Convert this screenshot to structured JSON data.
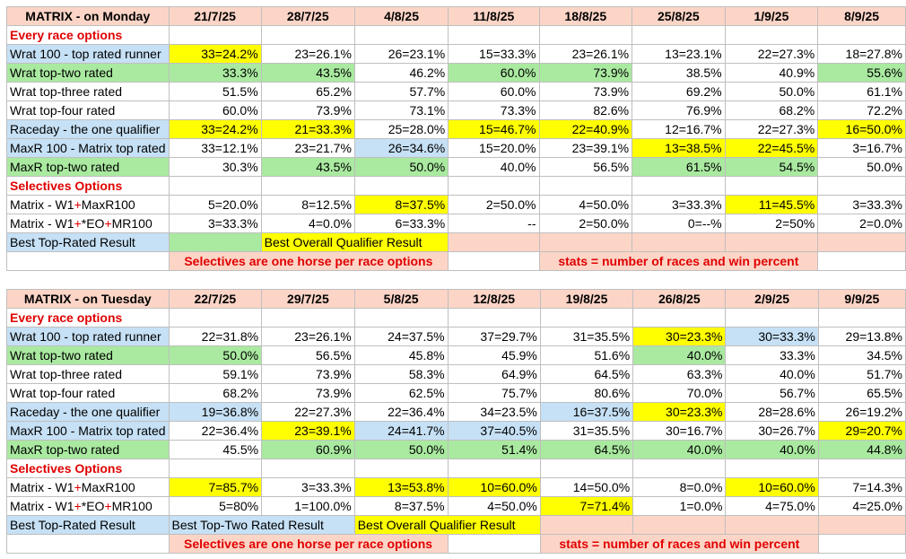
{
  "monday": {
    "title": "MATRIX - on Monday",
    "dates": [
      "21/7/25",
      "28/7/25",
      "4/8/25",
      "11/8/25",
      "18/8/25",
      "25/8/25",
      "1/9/25",
      "8/9/25"
    ],
    "section_every": "Every race options",
    "section_selectives": "Selectives Options",
    "rows": [
      {
        "label": "Wrat 100 - top rated runner",
        "label_color": "blue",
        "cells": [
          {
            "v": "33=24.2%",
            "c": "yellow"
          },
          {
            "v": "23=26.1%",
            "c": ""
          },
          {
            "v": "26=23.1%",
            "c": ""
          },
          {
            "v": "15=33.3%",
            "c": ""
          },
          {
            "v": "23=26.1%",
            "c": ""
          },
          {
            "v": "13=23.1%",
            "c": ""
          },
          {
            "v": "22=27.3%",
            "c": ""
          },
          {
            "v": "18=27.8%",
            "c": ""
          }
        ]
      },
      {
        "label": "Wrat top-two rated",
        "label_color": "green",
        "cells": [
          {
            "v": "33.3%",
            "c": "green"
          },
          {
            "v": "43.5%",
            "c": "green"
          },
          {
            "v": "46.2%",
            "c": ""
          },
          {
            "v": "60.0%",
            "c": "green"
          },
          {
            "v": "73.9%",
            "c": "green"
          },
          {
            "v": "38.5%",
            "c": ""
          },
          {
            "v": "40.9%",
            "c": ""
          },
          {
            "v": "55.6%",
            "c": "green"
          }
        ]
      },
      {
        "label": "Wrat top-three rated",
        "label_color": "",
        "cells": [
          {
            "v": "51.5%",
            "c": ""
          },
          {
            "v": "65.2%",
            "c": ""
          },
          {
            "v": "57.7%",
            "c": ""
          },
          {
            "v": "60.0%",
            "c": ""
          },
          {
            "v": "73.9%",
            "c": ""
          },
          {
            "v": "69.2%",
            "c": ""
          },
          {
            "v": "50.0%",
            "c": ""
          },
          {
            "v": "61.1%",
            "c": ""
          }
        ]
      },
      {
        "label": "Wrat top-four rated",
        "label_color": "",
        "cells": [
          {
            "v": "60.0%",
            "c": ""
          },
          {
            "v": "73.9%",
            "c": ""
          },
          {
            "v": "73.1%",
            "c": ""
          },
          {
            "v": "73.3%",
            "c": ""
          },
          {
            "v": "82.6%",
            "c": ""
          },
          {
            "v": "76.9%",
            "c": ""
          },
          {
            "v": "68.2%",
            "c": ""
          },
          {
            "v": "72.2%",
            "c": ""
          }
        ]
      },
      {
        "label": "Raceday - the one qualifier",
        "label_color": "blue",
        "cells": [
          {
            "v": "33=24.2%",
            "c": "yellow"
          },
          {
            "v": "21=33.3%",
            "c": "yellow"
          },
          {
            "v": "25=28.0%",
            "c": ""
          },
          {
            "v": "15=46.7%",
            "c": "yellow"
          },
          {
            "v": "22=40.9%",
            "c": "yellow"
          },
          {
            "v": "12=16.7%",
            "c": ""
          },
          {
            "v": "22=27.3%",
            "c": ""
          },
          {
            "v": "16=50.0%",
            "c": "yellow"
          }
        ]
      },
      {
        "label": "MaxR 100 - Matrix top rated",
        "label_color": "blue",
        "cells": [
          {
            "v": "33=12.1%",
            "c": ""
          },
          {
            "v": "23=21.7%",
            "c": ""
          },
          {
            "v": "26=34.6%",
            "c": "blue"
          },
          {
            "v": "15=20.0%",
            "c": ""
          },
          {
            "v": "23=39.1%",
            "c": ""
          },
          {
            "v": "13=38.5%",
            "c": "yellow"
          },
          {
            "v": "22=45.5%",
            "c": "yellow"
          },
          {
            "v": "3=16.7%",
            "c": ""
          }
        ]
      },
      {
        "label": "MaxR top-two rated",
        "label_color": "green",
        "cells": [
          {
            "v": "30.3%",
            "c": ""
          },
          {
            "v": "43.5%",
            "c": "green"
          },
          {
            "v": "50.0%",
            "c": "green"
          },
          {
            "v": "40.0%",
            "c": ""
          },
          {
            "v": "56.5%",
            "c": ""
          },
          {
            "v": "61.5%",
            "c": "green"
          },
          {
            "v": "54.5%",
            "c": "green"
          },
          {
            "v": "50.0%",
            "c": ""
          }
        ]
      }
    ],
    "selectives": [
      {
        "label_a": "Matrix - W1",
        "label_b": "+",
        "label_c": "MaxR100",
        "label_d": "",
        "label_e": "",
        "cells": [
          {
            "v": "5=20.0%",
            "c": ""
          },
          {
            "v": "8=12.5%",
            "c": ""
          },
          {
            "v": "8=37.5%",
            "c": "yellow"
          },
          {
            "v": "2=50.0%",
            "c": ""
          },
          {
            "v": "4=50.0%",
            "c": ""
          },
          {
            "v": "3=33.3%",
            "c": ""
          },
          {
            "v": "11=45.5%",
            "c": "yellow"
          },
          {
            "v": "3=33.3%",
            "c": ""
          }
        ]
      },
      {
        "label_a": "Matrix - W1",
        "label_b": "+",
        "label_c": "*EO",
        "label_d": "+",
        "label_e": "MR100",
        "cells": [
          {
            "v": "3=33.3%",
            "c": ""
          },
          {
            "v": "4=0.0%",
            "c": ""
          },
          {
            "v": "6=33.3%",
            "c": ""
          },
          {
            "v": "--",
            "c": ""
          },
          {
            "v": "2=50.0%",
            "c": ""
          },
          {
            "v": "0=--%",
            "c": ""
          },
          {
            "v": "2=50%",
            "c": ""
          },
          {
            "v": "2=0.0%",
            "c": ""
          }
        ]
      }
    ],
    "legend_top": "Best Top-Rated Result",
    "legend_overall": "Best Overall Qualifier Result",
    "note_left": "Selectives are one horse per race options",
    "note_right": "stats = number of races and win percent"
  },
  "tuesday": {
    "title": "MATRIX - on Tuesday",
    "dates": [
      "22/7/25",
      "29/7/25",
      "5/8/25",
      "12/8/25",
      "19/8/25",
      "26/8/25",
      "2/9/25",
      "9/9/25"
    ],
    "section_every": "Every race options",
    "section_selectives": "Selectives Options",
    "rows": [
      {
        "label": "Wrat 100 - top rated runner",
        "label_color": "blue",
        "cells": [
          {
            "v": "22=31.8%",
            "c": ""
          },
          {
            "v": "23=26.1%",
            "c": ""
          },
          {
            "v": "24=37.5%",
            "c": ""
          },
          {
            "v": "37=29.7%",
            "c": ""
          },
          {
            "v": "31=35.5%",
            "c": ""
          },
          {
            "v": "30=23.3%",
            "c": "yellow"
          },
          {
            "v": "30=33.3%",
            "c": "blue"
          },
          {
            "v": "29=13.8%",
            "c": ""
          }
        ]
      },
      {
        "label": "Wrat top-two rated",
        "label_color": "green",
        "cells": [
          {
            "v": "50.0%",
            "c": "green"
          },
          {
            "v": "56.5%",
            "c": ""
          },
          {
            "v": "45.8%",
            "c": ""
          },
          {
            "v": "45.9%",
            "c": ""
          },
          {
            "v": "51.6%",
            "c": ""
          },
          {
            "v": "40.0%",
            "c": "green"
          },
          {
            "v": "33.3%",
            "c": ""
          },
          {
            "v": "34.5%",
            "c": ""
          }
        ]
      },
      {
        "label": "Wrat top-three rated",
        "label_color": "",
        "cells": [
          {
            "v": "59.1%",
            "c": ""
          },
          {
            "v": "73.9%",
            "c": ""
          },
          {
            "v": "58.3%",
            "c": ""
          },
          {
            "v": "64.9%",
            "c": ""
          },
          {
            "v": "64.5%",
            "c": ""
          },
          {
            "v": "63.3%",
            "c": ""
          },
          {
            "v": "40.0%",
            "c": ""
          },
          {
            "v": "51.7%",
            "c": ""
          }
        ]
      },
      {
        "label": "Wrat top-four rated",
        "label_color": "",
        "cells": [
          {
            "v": "68.2%",
            "c": ""
          },
          {
            "v": "73.9%",
            "c": ""
          },
          {
            "v": "62.5%",
            "c": ""
          },
          {
            "v": "75.7%",
            "c": ""
          },
          {
            "v": "80.6%",
            "c": ""
          },
          {
            "v": "70.0%",
            "c": ""
          },
          {
            "v": "56.7%",
            "c": ""
          },
          {
            "v": "65.5%",
            "c": ""
          }
        ]
      },
      {
        "label": "Raceday - the one qualifier",
        "label_color": "blue",
        "cells": [
          {
            "v": "19=36.8%",
            "c": "blue"
          },
          {
            "v": "22=27.3%",
            "c": ""
          },
          {
            "v": "22=36.4%",
            "c": ""
          },
          {
            "v": "34=23.5%",
            "c": ""
          },
          {
            "v": "16=37.5%",
            "c": "blue"
          },
          {
            "v": "30=23.3%",
            "c": "yellow"
          },
          {
            "v": "28=28.6%",
            "c": ""
          },
          {
            "v": "26=19.2%",
            "c": ""
          }
        ]
      },
      {
        "label": "MaxR 100 - Matrix top rated",
        "label_color": "blue",
        "cells": [
          {
            "v": "22=36.4%",
            "c": ""
          },
          {
            "v": "23=39.1%",
            "c": "yellow"
          },
          {
            "v": "24=41.7%",
            "c": "blue"
          },
          {
            "v": "37=40.5%",
            "c": "blue"
          },
          {
            "v": "31=35.5%",
            "c": ""
          },
          {
            "v": "30=16.7%",
            "c": ""
          },
          {
            "v": "30=26.7%",
            "c": ""
          },
          {
            "v": "29=20.7%",
            "c": "yellow"
          }
        ]
      },
      {
        "label": "MaxR top-two rated",
        "label_color": "green",
        "cells": [
          {
            "v": "45.5%",
            "c": ""
          },
          {
            "v": "60.9%",
            "c": "green"
          },
          {
            "v": "50.0%",
            "c": "green"
          },
          {
            "v": "51.4%",
            "c": "green"
          },
          {
            "v": "64.5%",
            "c": "green"
          },
          {
            "v": "40.0%",
            "c": "green"
          },
          {
            "v": "40.0%",
            "c": "green"
          },
          {
            "v": "44.8%",
            "c": "green"
          }
        ]
      }
    ],
    "selectives": [
      {
        "label_a": "Matrix - W1",
        "label_b": "+",
        "label_c": "MaxR100",
        "label_d": "",
        "label_e": "",
        "cells": [
          {
            "v": "7=85.7%",
            "c": "yellow"
          },
          {
            "v": "3=33.3%",
            "c": ""
          },
          {
            "v": "13=53.8%",
            "c": "yellow"
          },
          {
            "v": "10=60.0%",
            "c": "yellow"
          },
          {
            "v": "14=50.0%",
            "c": ""
          },
          {
            "v": "8=0.0%",
            "c": ""
          },
          {
            "v": "10=60.0%",
            "c": "yellow"
          },
          {
            "v": "7=14.3%",
            "c": ""
          }
        ]
      },
      {
        "label_a": "Matrix - W1",
        "label_b": "+",
        "label_c": "*EO",
        "label_d": "+",
        "label_e": "MR100",
        "cells": [
          {
            "v": "5=80%",
            "c": ""
          },
          {
            "v": "1=100.0%",
            "c": ""
          },
          {
            "v": "8=37.5%",
            "c": ""
          },
          {
            "v": "4=50.0%",
            "c": ""
          },
          {
            "v": "7=71.4%",
            "c": "yellow"
          },
          {
            "v": "1=0.0%",
            "c": ""
          },
          {
            "v": "4=75.0%",
            "c": ""
          },
          {
            "v": "4=25.0%",
            "c": ""
          }
        ]
      }
    ],
    "legend_top": "Best Top-Rated Result",
    "legend_toptwo": "Best Top-Two Rated Result",
    "legend_overall": "Best Overall Qualifier Result",
    "note_left": "Selectives are one horse per race options",
    "note_right": "stats = number of races and win percent"
  }
}
